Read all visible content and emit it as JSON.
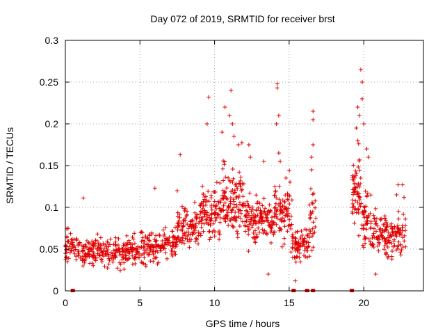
{
  "chart_data": {
    "type": "scatter",
    "title": "Day 072 of 2019, SRMTID for receiver brst",
    "xlabel": "GPS time / hours",
    "ylabel": "SRMTID / TECUs",
    "xlim": [
      0,
      24
    ],
    "ylim": [
      0,
      0.3
    ],
    "x_ticks": [
      0,
      5,
      10,
      15,
      20
    ],
    "x_tick_labels": [
      "0",
      "5",
      "10",
      "15",
      "20"
    ],
    "y_ticks": [
      0,
      0.05,
      0.1,
      0.15,
      0.2,
      0.25,
      0.3
    ],
    "y_tick_labels": [
      "0",
      "0.05",
      "0.1",
      "0.15",
      "0.2",
      "0.25",
      "0.3"
    ],
    "grid": true,
    "marker": "plus",
    "color": "#e00000",
    "segments": [
      {
        "x_start": 0.0,
        "x_end": 1.0,
        "y_mean": 0.052,
        "y_spread": 0.015,
        "count": 55
      },
      {
        "x_start": 1.0,
        "x_end": 5.0,
        "y_mean": 0.047,
        "y_spread": 0.014,
        "count": 240
      },
      {
        "x_start": 5.0,
        "x_end": 6.5,
        "y_mean": 0.053,
        "y_spread": 0.017,
        "count": 90
      },
      {
        "x_start": 6.5,
        "x_end": 7.5,
        "y_mean": 0.058,
        "y_spread": 0.016,
        "count": 60
      },
      {
        "x_start": 7.5,
        "x_end": 9.0,
        "y_mean": 0.074,
        "y_spread": 0.02,
        "count": 100
      },
      {
        "x_start": 9.0,
        "x_end": 10.5,
        "y_mean": 0.094,
        "y_spread": 0.025,
        "count": 110
      },
      {
        "x_start": 10.5,
        "x_end": 12.0,
        "y_mean": 0.11,
        "y_spread": 0.035,
        "count": 120
      },
      {
        "x_start": 12.0,
        "x_end": 14.0,
        "y_mean": 0.083,
        "y_spread": 0.022,
        "count": 140
      },
      {
        "x_start": 14.0,
        "x_end": 15.2,
        "y_mean": 0.095,
        "y_spread": 0.03,
        "count": 90
      },
      {
        "x_start": 15.2,
        "x_end": 16.3,
        "y_mean": 0.055,
        "y_spread": 0.015,
        "count": 75
      },
      {
        "x_start": 16.3,
        "x_end": 16.8,
        "y_mean": 0.085,
        "y_spread": 0.03,
        "count": 30
      },
      {
        "x_start": 19.2,
        "x_end": 19.8,
        "y_mean": 0.125,
        "y_spread": 0.04,
        "count": 60
      },
      {
        "x_start": 19.8,
        "x_end": 20.5,
        "y_mean": 0.085,
        "y_spread": 0.03,
        "count": 50
      },
      {
        "x_start": 20.5,
        "x_end": 22.8,
        "y_mean": 0.068,
        "y_spread": 0.02,
        "count": 150
      }
    ],
    "spikes": [
      [
        9.6,
        0.232
      ],
      [
        9.5,
        0.2
      ],
      [
        10.5,
        0.19
      ],
      [
        10.7,
        0.22
      ],
      [
        11.1,
        0.24
      ],
      [
        11.0,
        0.21
      ],
      [
        11.2,
        0.2
      ],
      [
        11.6,
        0.175
      ],
      [
        11.3,
        0.185
      ],
      [
        12.3,
        0.175
      ],
      [
        12.4,
        0.16
      ],
      [
        13.3,
        0.155
      ],
      [
        14.2,
        0.248
      ],
      [
        14.2,
        0.243
      ],
      [
        14.15,
        0.2
      ],
      [
        14.3,
        0.21
      ],
      [
        14.3,
        0.165
      ],
      [
        14.4,
        0.155
      ],
      [
        16.6,
        0.215
      ],
      [
        16.6,
        0.205
      ],
      [
        16.6,
        0.175
      ],
      [
        16.5,
        0.16
      ],
      [
        16.5,
        0.145
      ],
      [
        7.7,
        0.163
      ],
      [
        7.5,
        0.12
      ],
      [
        6.0,
        0.123
      ],
      [
        19.8,
        0.265
      ],
      [
        19.9,
        0.25
      ],
      [
        19.6,
        0.22
      ],
      [
        19.7,
        0.21
      ],
      [
        19.9,
        0.23
      ],
      [
        20.0,
        0.2
      ],
      [
        19.5,
        0.195
      ],
      [
        20.2,
        0.17
      ],
      [
        20.3,
        0.16
      ],
      [
        19.6,
        0.18
      ],
      [
        22.3,
        0.127
      ],
      [
        22.6,
        0.127
      ],
      [
        22.2,
        0.115
      ],
      [
        22.7,
        0.112
      ],
      [
        1.2,
        0.111
      ],
      [
        0.1,
        0.065
      ],
      [
        13.6,
        0.02
      ],
      [
        15.4,
        0.012
      ],
      [
        20.8,
        0.02
      ]
    ],
    "gaps_at_zero": [
      0.5,
      15.3,
      16.2,
      16.6,
      19.2
    ],
    "series": [
      {
        "values_description_ref": "segments+spikes"
      }
    ]
  }
}
